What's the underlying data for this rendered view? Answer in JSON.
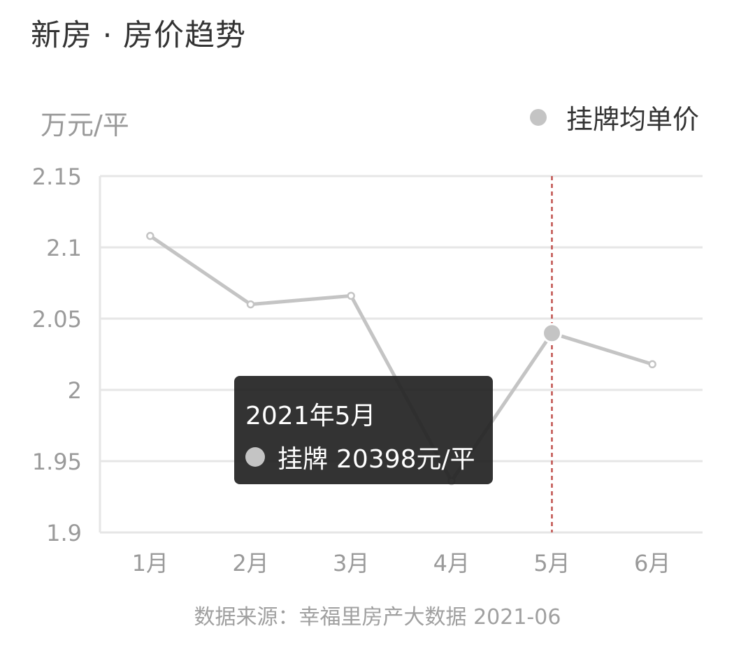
{
  "title": "新房 · 房价趋势",
  "unit_label": "万元/平",
  "legend": {
    "label": "挂牌均单价",
    "color": "#c4c4c4"
  },
  "tooltip": {
    "title": "2021年5月",
    "label": "挂牌",
    "value": "20398元/平"
  },
  "source": "数据来源：幸福里房产大数据 2021-06",
  "colors": {
    "line": "#c4c4c4",
    "grid": "#e6e6e6",
    "axis_text": "#9a9a9a",
    "marker_line": "#c0504d"
  },
  "chart_data": {
    "type": "line",
    "categories": [
      "1月",
      "2月",
      "3月",
      "4月",
      "5月",
      "6月"
    ],
    "series": [
      {
        "name": "挂牌均单价",
        "values": [
          2.108,
          2.06,
          2.066,
          1.936,
          2.0398,
          2.018
        ]
      }
    ],
    "ylim": [
      1.9,
      2.15
    ],
    "yticks": [
      1.9,
      1.95,
      2,
      2.05,
      2.1,
      2.15
    ],
    "ytick_labels": [
      "1.9",
      "1.95",
      "2",
      "2.05",
      "2.1",
      "2.15"
    ],
    "ylabel": "万元/平",
    "highlight_index": 4,
    "grid": true,
    "legend_position": "top-right"
  }
}
